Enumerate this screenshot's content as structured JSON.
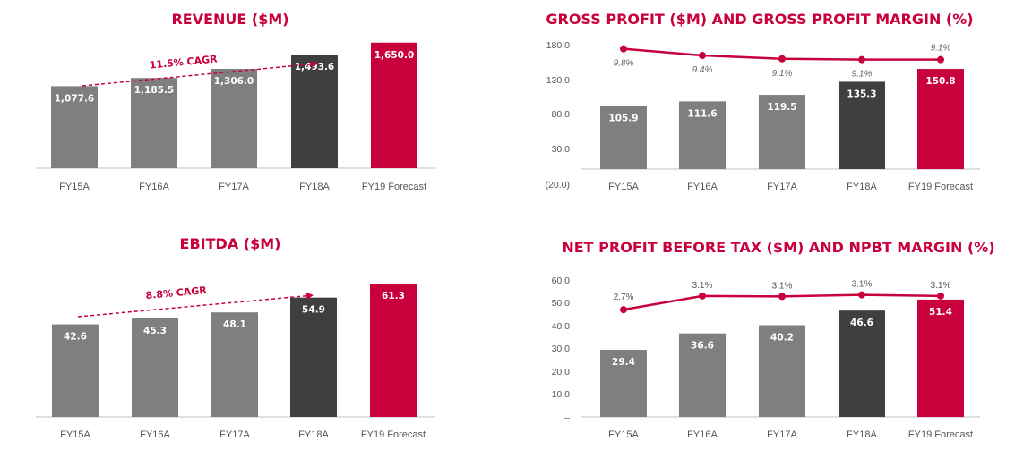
{
  "colors": {
    "accent": "#c8003c",
    "bar_actual": "#7f7f7f",
    "bar_fy18": "#3f3f3f",
    "bar_forecast": "#c8003c",
    "axis": "#bfbfbf"
  },
  "chart_data": [
    {
      "id": "revenue",
      "type": "bar",
      "title": "REVENUE ($M)",
      "categories": [
        "FY15A",
        "FY16A",
        "FY17A",
        "FY18A",
        "FY19 Forecast"
      ],
      "values": [
        1077.6,
        1185.5,
        1306.0,
        1493.6,
        1650.0
      ],
      "value_labels": [
        "1,077.6",
        "1,185.5",
        "1,306.0",
        "1,493.6",
        "1,650.0"
      ],
      "ylim": [
        0,
        1800
      ],
      "annotation": "11.5% CAGR",
      "grid": false,
      "legend": "none"
    },
    {
      "id": "gross-profit",
      "type": "bar",
      "title": "GROSS PROFIT ($M) AND GROSS PROFIT MARGIN (%)",
      "categories": [
        "FY15A",
        "FY16A",
        "FY17A",
        "FY18A",
        "FY19 Forecast"
      ],
      "values": [
        105.9,
        111.6,
        119.5,
        135.3,
        150.8
      ],
      "value_labels": [
        "105.9",
        "111.6",
        "119.5",
        "135.3",
        "150.8"
      ],
      "y_ticks": [
        "180.0",
        "130.0",
        "80.0",
        "30.0",
        "(20.0)"
      ],
      "ylim": [
        -20,
        180
      ],
      "line_series": {
        "labels": [
          "9.8%",
          "9.4%",
          "9.1%",
          "9.1%",
          "9.1%"
        ],
        "values": [
          9.8,
          9.4,
          9.1,
          9.1,
          9.1
        ],
        "plot_y": [
          175,
          167,
          163,
          162,
          162
        ]
      },
      "grid": false,
      "legend": "none"
    },
    {
      "id": "ebitda",
      "type": "bar",
      "title": "EBITDA ($M)",
      "categories": [
        "FY15A",
        "FY16A",
        "FY17A",
        "FY18A",
        "FY19 Forecast"
      ],
      "values": [
        42.6,
        45.3,
        48.1,
        54.9,
        61.3
      ],
      "value_labels": [
        "42.6",
        "45.3",
        "48.1",
        "54.9",
        "61.3"
      ],
      "ylim": [
        0,
        70
      ],
      "annotation": "8.8% CAGR",
      "grid": false,
      "legend": "none"
    },
    {
      "id": "npbt",
      "type": "bar",
      "title": "NET PROFIT BEFORE TAX ($M) AND NPBT MARGIN (%)",
      "categories": [
        "FY15A",
        "FY16A",
        "FY17A",
        "FY18A",
        "FY19 Forecast"
      ],
      "values": [
        29.4,
        36.6,
        40.2,
        46.6,
        51.4
      ],
      "value_labels": [
        "29.4",
        "36.6",
        "40.2",
        "46.6",
        "51.4"
      ],
      "y_ticks": [
        "60.0",
        "50.0",
        "40.0",
        "30.0",
        "20.0",
        "10.0",
        "–"
      ],
      "ylim": [
        0,
        60
      ],
      "line_series": {
        "labels": [
          "2.7%",
          "3.1%",
          "3.1%",
          "3.1%",
          "3.1%"
        ],
        "values": [
          2.7,
          3.1,
          3.1,
          3.1,
          3.1
        ],
        "plot_y": [
          47.0,
          53.0,
          52.8,
          53.5,
          53.0
        ]
      },
      "grid": false,
      "legend": "none"
    }
  ]
}
